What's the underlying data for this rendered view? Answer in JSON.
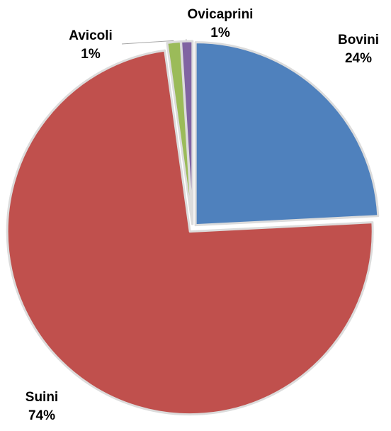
{
  "chart_data": {
    "type": "pie",
    "title": "",
    "slices": [
      {
        "label": "Bovini",
        "pct_label": "24%",
        "value": 24.2,
        "color": "#4f81bd"
      },
      {
        "label": "Suini",
        "pct_label": "74%",
        "value": 73.6,
        "color": "#c0504d"
      },
      {
        "label": "Avicoli",
        "pct_label": "1%",
        "value": 1.2,
        "color": "#9bbb59"
      },
      {
        "label": "Ovicaprini",
        "pct_label": "1%",
        "value": 1.0,
        "color": "#8064a2"
      }
    ],
    "start_angle": "12 o'clock",
    "direction": "clockwise",
    "exploded": true,
    "legend": "none",
    "data_labels": "category and percentage, outside slices"
  }
}
